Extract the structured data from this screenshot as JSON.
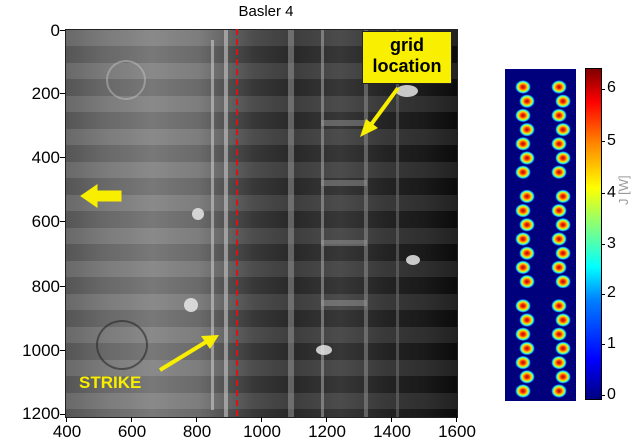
{
  "figure": {
    "title": "Basler 4",
    "callouts": {
      "grid_location": [
        "grid",
        "location"
      ],
      "strike": "STRIKE"
    },
    "y_ticks": [
      "0",
      "200",
      "400",
      "600",
      "800",
      "1000",
      "1200"
    ],
    "x_ticks": [
      "400",
      "600",
      "800",
      "1000",
      "1200",
      "1400",
      "1600"
    ],
    "colorbar": {
      "ticks": [
        "6",
        "5",
        "4",
        "3",
        "2",
        "1",
        "0"
      ],
      "label": "J [W]"
    },
    "colors": {
      "callout_fill": "#f8f000",
      "dashed_line": "#e01010",
      "arrow": "#f8ee00"
    }
  }
}
